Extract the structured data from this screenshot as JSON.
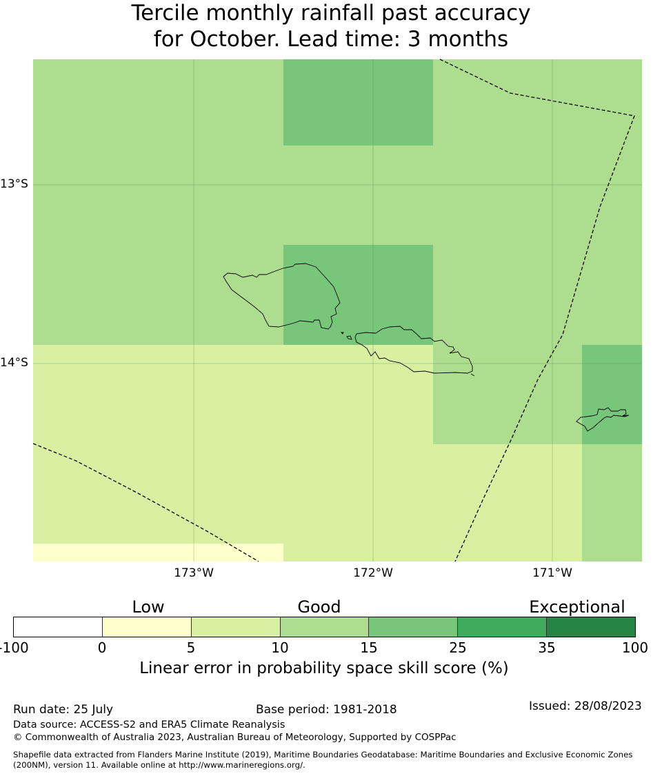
{
  "title": {
    "line1": "Tercile monthly rainfall past accuracy",
    "line2": "for October. Lead time: 3 months"
  },
  "map": {
    "lat_labels": [
      "13°S",
      "14°S"
    ],
    "lon_labels": [
      "173°W",
      "172°W",
      "171°W"
    ]
  },
  "legend": {
    "categories": [
      "Low",
      "Good",
      "Exceptional"
    ],
    "ticks": [
      "-100",
      "0",
      "5",
      "10",
      "15",
      "25",
      "35",
      "100"
    ],
    "colors": [
      "#ffffff",
      "#ffffcc",
      "#d9f0a3",
      "#addd8e",
      "#78c679",
      "#41ab5d",
      "#238443"
    ],
    "label": "Linear error in probability space skill score (%)"
  },
  "footer": {
    "run_date": "Run date: 25 July",
    "base_period": "Base period: 1981-2018",
    "issued": "Issued: 28/08/2023",
    "data_source": "Data source: ACCESS-S2 and ERA5 Climate Reanalysis",
    "copyright": "© Commonwealth of Australia 2023, Australian Bureau of Meteorology, Supported by COSPPac",
    "shapefile_line1": "Shapefile data extracted from Flanders Marine Institute (2019), Maritime Boundaries Geodatabase: Maritime Boundaries and Exclusive Economic Zones",
    "shapefile_line2": "(200NM), version 11. Available online at http://www.marineregions.org/."
  }
}
